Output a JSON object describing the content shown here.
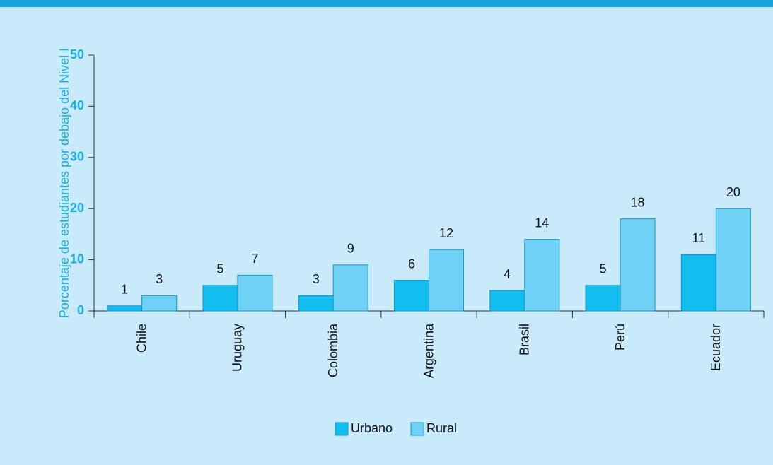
{
  "chart_data": {
    "type": "bar",
    "y_axis_label": "Porcentaje de estudiantes por debajo del Nivel I",
    "categories": [
      "Chile",
      "Uruguay",
      "Colombia",
      "Argentina",
      "Brasil",
      "Perú",
      "Ecuador"
    ],
    "series": [
      {
        "name": "Urbano",
        "color": "#12bdef",
        "values": [
          1,
          5,
          3,
          6,
          4,
          5,
          11
        ]
      },
      {
        "name": "Rural",
        "color": "#70d1f6",
        "values": [
          3,
          7,
          9,
          12,
          14,
          18,
          20
        ]
      }
    ],
    "ylim": [
      0,
      50
    ],
    "yticks": [
      0,
      10,
      20,
      30,
      40,
      50
    ],
    "grid": false,
    "legend": "bottom"
  }
}
